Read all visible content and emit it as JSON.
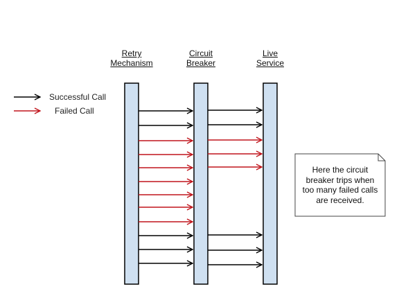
{
  "lifelines": [
    {
      "id": "retry",
      "line1": "Retry",
      "line2": "Mechanism"
    },
    {
      "id": "breaker",
      "line1": "Circuit",
      "line2": "Breaker"
    },
    {
      "id": "service",
      "line1": "Live",
      "line2": "Service"
    }
  ],
  "legend": {
    "successful": "Successful Call",
    "failed": "Failed Call"
  },
  "colors": {
    "successful": "#000000",
    "failed": "#c0141b",
    "bar_fill": "#cfe0f1",
    "bar_stroke": "#000000",
    "note_fill": "#ffffff",
    "note_stroke": "#444444"
  },
  "calls": [
    {
      "from": "retry",
      "to": "breaker",
      "status": "successful"
    },
    {
      "from": "breaker",
      "to": "service",
      "status": "successful"
    },
    {
      "from": "retry",
      "to": "breaker",
      "status": "successful"
    },
    {
      "from": "breaker",
      "to": "service",
      "status": "successful"
    },
    {
      "from": "retry",
      "to": "breaker",
      "status": "failed"
    },
    {
      "from": "breaker",
      "to": "service",
      "status": "failed"
    },
    {
      "from": "retry",
      "to": "breaker",
      "status": "failed"
    },
    {
      "from": "breaker",
      "to": "service",
      "status": "failed"
    },
    {
      "from": "retry",
      "to": "breaker",
      "status": "failed"
    },
    {
      "from": "breaker",
      "to": "service",
      "status": "failed"
    },
    {
      "from": "retry",
      "to": "breaker",
      "status": "failed"
    },
    {
      "from": "retry",
      "to": "breaker",
      "status": "failed"
    },
    {
      "from": "retry",
      "to": "breaker",
      "status": "failed"
    },
    {
      "from": "retry",
      "to": "breaker",
      "status": "failed"
    },
    {
      "from": "retry",
      "to": "breaker",
      "status": "successful"
    },
    {
      "from": "breaker",
      "to": "service",
      "status": "successful"
    },
    {
      "from": "retry",
      "to": "breaker",
      "status": "successful"
    },
    {
      "from": "breaker",
      "to": "service",
      "status": "successful"
    },
    {
      "from": "retry",
      "to": "breaker",
      "status": "successful"
    },
    {
      "from": "breaker",
      "to": "service",
      "status": "successful"
    }
  ],
  "note": {
    "lines": [
      "Here the circuit",
      "breaker trips when",
      "too many failed calls",
      "are received."
    ]
  }
}
